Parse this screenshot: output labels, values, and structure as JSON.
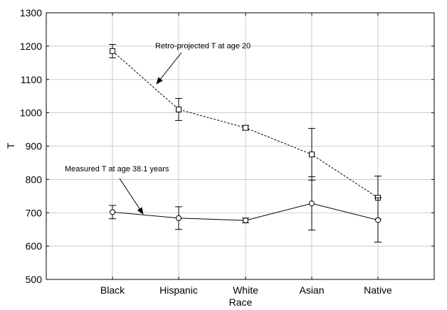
{
  "chart_data": {
    "type": "line",
    "title": "",
    "xlabel": "Race",
    "ylabel": "T",
    "categories": [
      "Black",
      "Hispanic",
      "White",
      "Asian",
      "Native"
    ],
    "ylim": [
      500,
      1300
    ],
    "yticks": [
      500,
      600,
      700,
      800,
      900,
      1000,
      1100,
      1200,
      1300
    ],
    "grid": true,
    "series": [
      {
        "name": "",
        "style": "dashed",
        "marker": "square",
        "values": [
          1185,
          1010,
          955,
          875,
          745
        ],
        "err_low": [
          1165,
          977,
          948,
          798,
          681
        ],
        "err_high": [
          1205,
          1043,
          962,
          953,
          810
        ]
      },
      {
        "name": "",
        "style": "solid",
        "marker": "circle",
        "values": [
          702,
          684,
          677,
          728,
          678
        ],
        "err_low": [
          682,
          650,
          670,
          648,
          612
        ],
        "err_high": [
          722,
          718,
          684,
          808,
          745
        ]
      }
    ],
    "annotations": [
      {
        "text": "Retro-projected T at age 20",
        "points_to_series": 0
      },
      {
        "text": "Measured T at age 38.1 years",
        "points_to_series": 1
      }
    ]
  }
}
